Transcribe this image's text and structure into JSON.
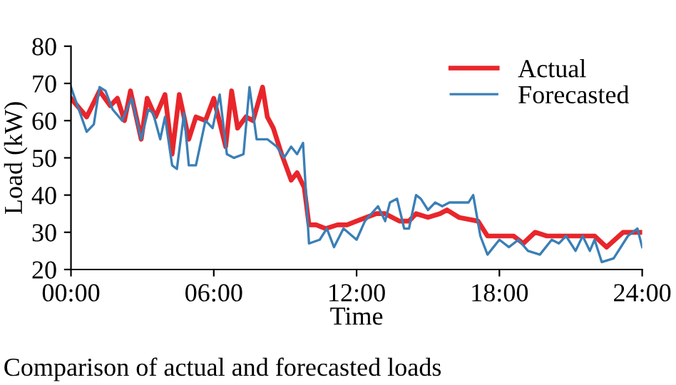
{
  "chart_data": {
    "type": "line",
    "xlabel": "Time",
    "ylabel": "Load (kW)",
    "annotations": [
      "Comparison of actual and forecasted loads"
    ],
    "xlim": [
      0,
      24
    ],
    "ylim": [
      20,
      80
    ],
    "xticks": [
      {
        "value": 0,
        "label": "00:00"
      },
      {
        "value": 6,
        "label": "06:00"
      },
      {
        "value": 12,
        "label": "12:00"
      },
      {
        "value": 18,
        "label": "18:00"
      },
      {
        "value": 24,
        "label": "24:00"
      }
    ],
    "yticks": [
      20,
      30,
      40,
      50,
      60,
      70,
      80
    ],
    "grid": false,
    "legend": "top right",
    "marker": "none",
    "line_style": "solid",
    "series": [
      {
        "name": "Actual",
        "color": "#e8262b",
        "x": [
          0,
          0.66,
          1.2,
          1.65,
          1.95,
          2.25,
          2.5,
          2.95,
          3.2,
          3.55,
          3.95,
          4.25,
          4.55,
          4.95,
          5.25,
          5.65,
          6.0,
          6.5,
          6.75,
          7.0,
          7.35,
          7.65,
          8.05,
          8.25,
          8.5,
          8.85,
          9.25,
          9.5,
          9.8,
          10.0,
          10.3,
          10.7,
          11.2,
          11.6,
          12.0,
          12.83,
          13.2,
          13.8,
          14.2,
          14.5,
          15.0,
          15.5,
          15.8,
          16.3,
          17.1,
          17.5,
          18.2,
          18.6,
          19.0,
          19.5,
          20.0,
          20.6,
          21.2,
          22.0,
          22.5,
          23.2,
          24.0
        ],
        "values": [
          66,
          61,
          68,
          64,
          66,
          60,
          68,
          55,
          66,
          61,
          67,
          51,
          67,
          55,
          61,
          60,
          66,
          53,
          68,
          58,
          61,
          60,
          69,
          61,
          58,
          51,
          44,
          46,
          42,
          32,
          32,
          31,
          32,
          32,
          33,
          35,
          35,
          33,
          33,
          35,
          34,
          35,
          36,
          34,
          33,
          29,
          29,
          29,
          27,
          30,
          29,
          29,
          29,
          29,
          26,
          30,
          30
        ]
      },
      {
        "name": "Forecasted",
        "color": "#3a7fb6",
        "x": [
          0,
          0.66,
          0.96,
          1.2,
          1.45,
          1.75,
          2.15,
          2.55,
          2.95,
          3.25,
          3.45,
          3.75,
          3.95,
          4.25,
          4.45,
          4.75,
          4.95,
          5.25,
          5.65,
          5.95,
          6.25,
          6.55,
          6.85,
          7.25,
          7.5,
          7.8,
          8.25,
          8.65,
          8.95,
          9.25,
          9.5,
          9.75,
          10.0,
          10.45,
          10.75,
          11.05,
          11.45,
          12.0,
          12.35,
          12.9,
          13.2,
          13.4,
          13.7,
          14.0,
          14.2,
          14.5,
          14.7,
          15.0,
          15.3,
          15.6,
          15.9,
          16.4,
          16.7,
          16.9,
          17.2,
          17.5,
          18.0,
          18.4,
          18.8,
          19.2,
          19.7,
          20.2,
          20.5,
          20.8,
          21.2,
          21.5,
          21.8,
          22.0,
          22.3,
          22.8,
          23.4,
          23.8,
          24.0
        ],
        "values": [
          69,
          57,
          59,
          69,
          68,
          63,
          60,
          66,
          55,
          63,
          62,
          55,
          61,
          48,
          47,
          62,
          48,
          48,
          60,
          58,
          67,
          51,
          50,
          51,
          69,
          55,
          55,
          53,
          50,
          53,
          51,
          54,
          27,
          28,
          31,
          26,
          31,
          28,
          33,
          37,
          33,
          38,
          39,
          31,
          31,
          40,
          39,
          36,
          38,
          37,
          38,
          38,
          38,
          40,
          29,
          24,
          28,
          26,
          28,
          25,
          24,
          28,
          27,
          29,
          25,
          29,
          25,
          28,
          22,
          23,
          29,
          31,
          26
        ]
      }
    ]
  }
}
